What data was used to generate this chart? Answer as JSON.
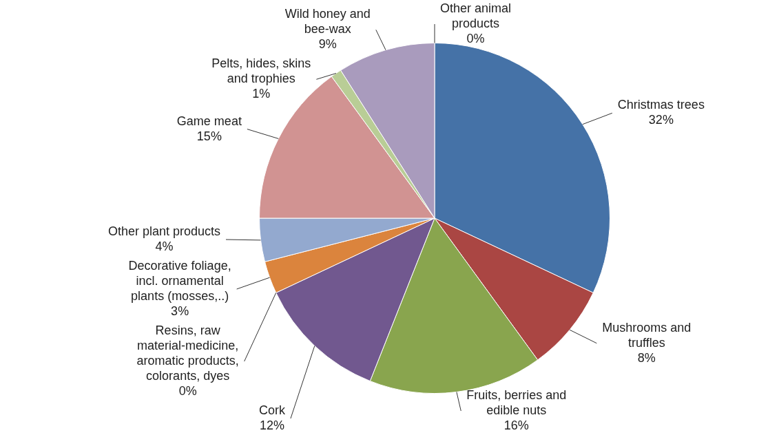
{
  "chart_data": {
    "type": "pie",
    "categories": [
      "Christmas trees",
      "Mushrooms and truffles",
      "Fruits, berries and edible nuts",
      "Cork",
      "Resins, raw material-medicine, aromatic products, colorants, dyes",
      "Decorative foliage, incl. ornamental plants (mosses,..)",
      "Other plant products",
      "Game meat",
      "Pelts, hides, skins and trophies",
      "Wild honey and bee-wax",
      "Other animal products"
    ],
    "values": [
      32,
      8,
      16,
      12,
      0,
      3,
      4,
      15,
      1,
      9,
      0
    ],
    "value_labels": [
      "32%",
      "8%",
      "16%",
      "12%",
      "0%",
      "3%",
      "4%",
      "15%",
      "1%",
      "9%",
      "0%"
    ],
    "colors": [
      "#4572a7",
      "#aa4643",
      "#89a54e",
      "#71588f",
      "#4198af",
      "#db843d",
      "#93a9cf",
      "#d19392",
      "#b9cd96",
      "#a99bbd",
      "#4bacc6"
    ],
    "legend": false
  }
}
